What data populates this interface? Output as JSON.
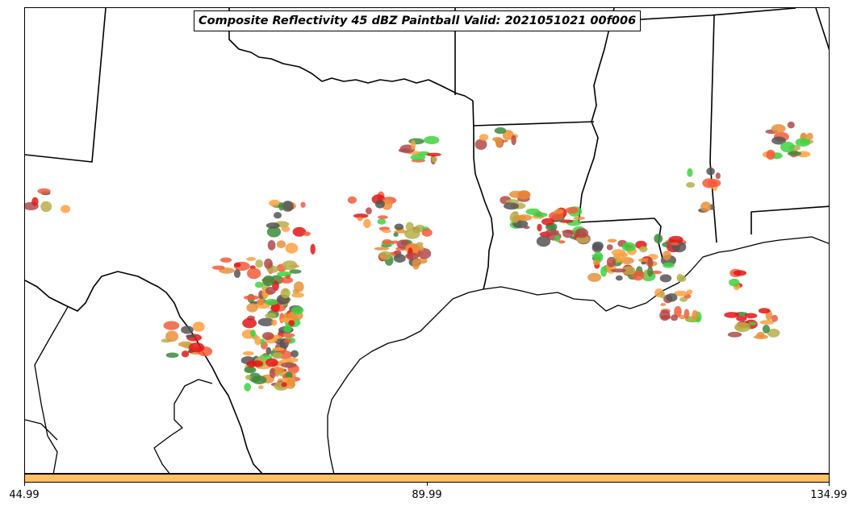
{
  "title": "Composite Reflectivity 45 dBZ Paintball Valid: 2021051021 00f006",
  "colorbar": {
    "color": "#ffc066",
    "ticks": [
      "44.99",
      "89.99",
      "134.99"
    ]
  },
  "member_colors": [
    "#e21616",
    "#f55a3a",
    "#ffa040",
    "#3fd23f",
    "#3c8a3c",
    "#b5b04a",
    "#b04a4a",
    "#555555",
    "#e8903a"
  ],
  "map": {
    "region": "Texas / Louisiana / Gulf Coast",
    "boundaries": "state borders and coastline in black"
  }
}
